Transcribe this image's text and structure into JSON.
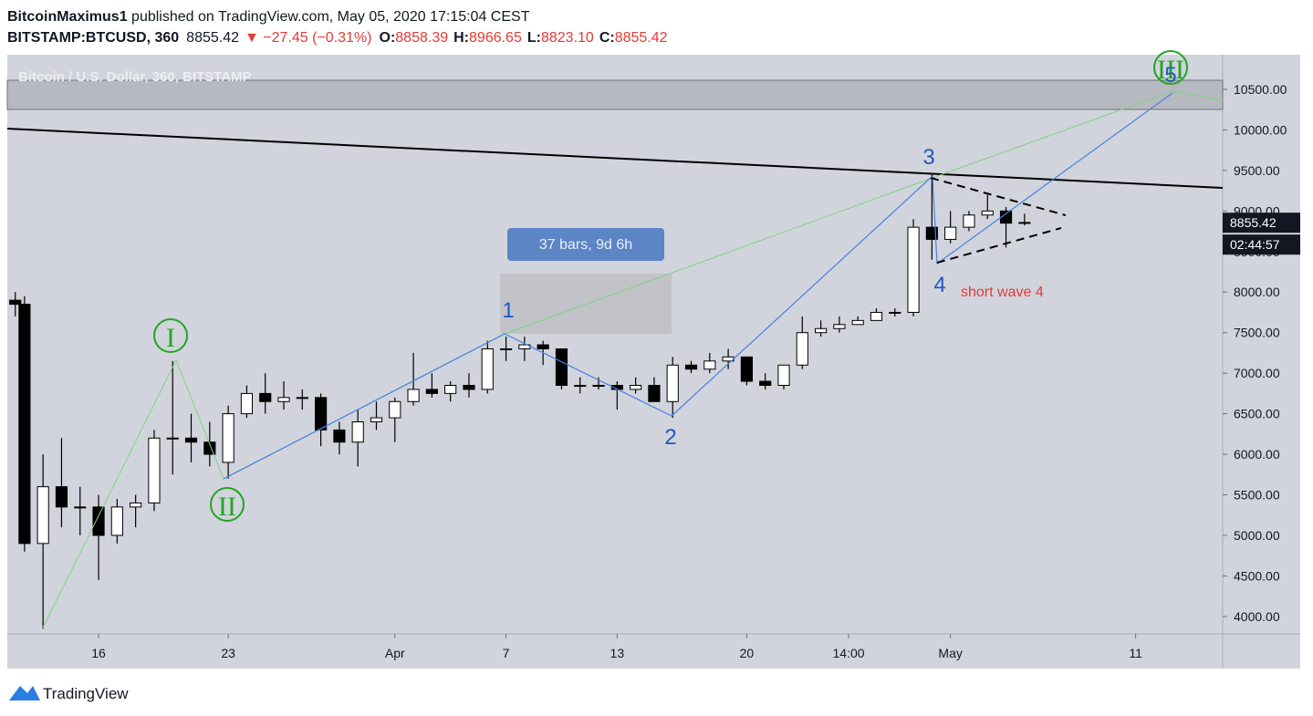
{
  "header": {
    "author": "BitcoinMaximus1",
    "published": " published on TradingView.com, May 05, 2020 17:15:04 CEST",
    "symbol": "BITSTAMP:BTCUSD, 360",
    "price": "8855.42",
    "change": "▼ −27.45 (−0.31%)",
    "ohlc": [
      {
        "key": "O:",
        "value": "8858.39"
      },
      {
        "key": "H:",
        "value": "8966.65"
      },
      {
        "key": "L:",
        "value": "8823.10"
      },
      {
        "key": "C:",
        "value": "8855.42"
      }
    ]
  },
  "chart_data": {
    "type": "candlestick",
    "title": "Bitcoin / U.S. Dollar, 360, BITSTAMP",
    "x": [
      71.5,
      72,
      73,
      74,
      75,
      76,
      77,
      78,
      79,
      80,
      81,
      82,
      83,
      84,
      85,
      86,
      87,
      88,
      89,
      90,
      91,
      92,
      93,
      94,
      95,
      96,
      97,
      98,
      99,
      100,
      101,
      102,
      103,
      104,
      105,
      106,
      107,
      108,
      109,
      110,
      111,
      112,
      113,
      114,
      115,
      116,
      117,
      118,
      119,
      120,
      121,
      122,
      123,
      124,
      125,
      126
    ],
    "open": [
      7900,
      7850,
      4900,
      5600,
      5350,
      5350,
      5000,
      5350,
      5400,
      6200,
      6200,
      6150,
      5900,
      6500,
      6750,
      6650,
      6700,
      6700,
      6300,
      6150,
      6400,
      6450,
      6650,
      6800,
      6750,
      6850,
      6800,
      7300,
      7300,
      7350,
      7300,
      6850,
      6850,
      6850,
      6800,
      6850,
      6650,
      7100,
      7050,
      7150,
      7200,
      6900,
      6850,
      7100,
      7500,
      7550,
      7600,
      7650,
      7750,
      7750,
      8800,
      8650,
      8800,
      8950,
      9000,
      8858.39
    ],
    "high": [
      8000,
      7950,
      6000,
      6200,
      5600,
      5500,
      5450,
      5500,
      6300,
      7150,
      6500,
      6400,
      6600,
      6850,
      7000,
      6900,
      6800,
      6750,
      6400,
      6550,
      6650,
      6700,
      7250,
      7000,
      6900,
      7000,
      7400,
      7450,
      7450,
      7400,
      7300,
      6950,
      6950,
      6900,
      6950,
      6950,
      7200,
      7150,
      7250,
      7300,
      7200,
      7000,
      7100,
      7700,
      7650,
      7700,
      7700,
      7800,
      7800,
      8900,
      9450,
      9000,
      9000,
      9200,
      9050,
      8966.65
    ],
    "low": [
      7700,
      4800,
      3850,
      5100,
      5000,
      4450,
      4900,
      5100,
      5300,
      5750,
      5900,
      5850,
      5700,
      6450,
      6500,
      6550,
      6550,
      6100,
      6000,
      5850,
      6300,
      6150,
      6600,
      6700,
      6650,
      6700,
      6750,
      7150,
      7150,
      7100,
      6800,
      6750,
      6800,
      6550,
      6750,
      6700,
      6450,
      7000,
      7000,
      7050,
      6850,
      6800,
      6800,
      7050,
      7450,
      7500,
      7600,
      7650,
      7700,
      7700,
      8400,
      8600,
      8750,
      8900,
      8550,
      8823.1
    ],
    "close": [
      7850,
      4900,
      5600,
      5350,
      5350,
      5000,
      5350,
      5400,
      6200,
      6200,
      6150,
      6000,
      6500,
      6750,
      6650,
      6700,
      6700,
      6300,
      6150,
      6400,
      6450,
      6650,
      6800,
      6750,
      6850,
      6800,
      7300,
      7300,
      7350,
      7300,
      6850,
      6850,
      6850,
      6800,
      6850,
      6650,
      7100,
      7050,
      7150,
      7200,
      6900,
      6850,
      7100,
      7500,
      7550,
      7600,
      7650,
      7750,
      7750,
      8800,
      8650,
      8800,
      8950,
      9000,
      8850,
      8855.42
    ],
    "up_color": "#ffffff",
    "down_color": "#000000",
    "xlim": [
      71.07,
      136.7
    ],
    "ylim": [
      3785,
      10927
    ],
    "xticks": [
      {
        "value": 76,
        "label": "16"
      },
      {
        "value": 83,
        "label": "23"
      },
      {
        "value": 92,
        "label": "Apr"
      },
      {
        "value": 98,
        "label": "7"
      },
      {
        "value": 104,
        "label": "13"
      },
      {
        "value": 111,
        "label": "20"
      },
      {
        "value": 116.5,
        "label": "14:00"
      },
      {
        "value": 122,
        "label": "May"
      },
      {
        "value": 132,
        "label": "11"
      }
    ],
    "yticks": [
      {
        "value": 4000,
        "label": "4000.00"
      },
      {
        "value": 4500,
        "label": "4500.00"
      },
      {
        "value": 5000,
        "label": "5000.00"
      },
      {
        "value": 5500,
        "label": "5500.00"
      },
      {
        "value": 6000,
        "label": "6000.00"
      },
      {
        "value": 6500,
        "label": "6500.00"
      },
      {
        "value": 7000,
        "label": "7000.00"
      },
      {
        "value": 7500,
        "label": "7500.00"
      },
      {
        "value": 8000,
        "label": "8000.00"
      },
      {
        "value": 8500,
        "label": "8500.00"
      },
      {
        "value": 9000,
        "label": "9000.00"
      },
      {
        "value": 9500,
        "label": "9500.00"
      },
      {
        "value": 10000,
        "label": "10000.00"
      },
      {
        "value": 10500,
        "label": "10500.00"
      }
    ],
    "last_price_label": "8855.42",
    "countdown": "02:44:57",
    "annotations": {
      "measure": "37 bars, 9d 6h",
      "waves": [
        "I",
        "II",
        "III",
        "1",
        "2",
        "3",
        "4",
        "5"
      ],
      "note": "short wave 4"
    }
  },
  "footer": {
    "brand": "TradingView"
  }
}
